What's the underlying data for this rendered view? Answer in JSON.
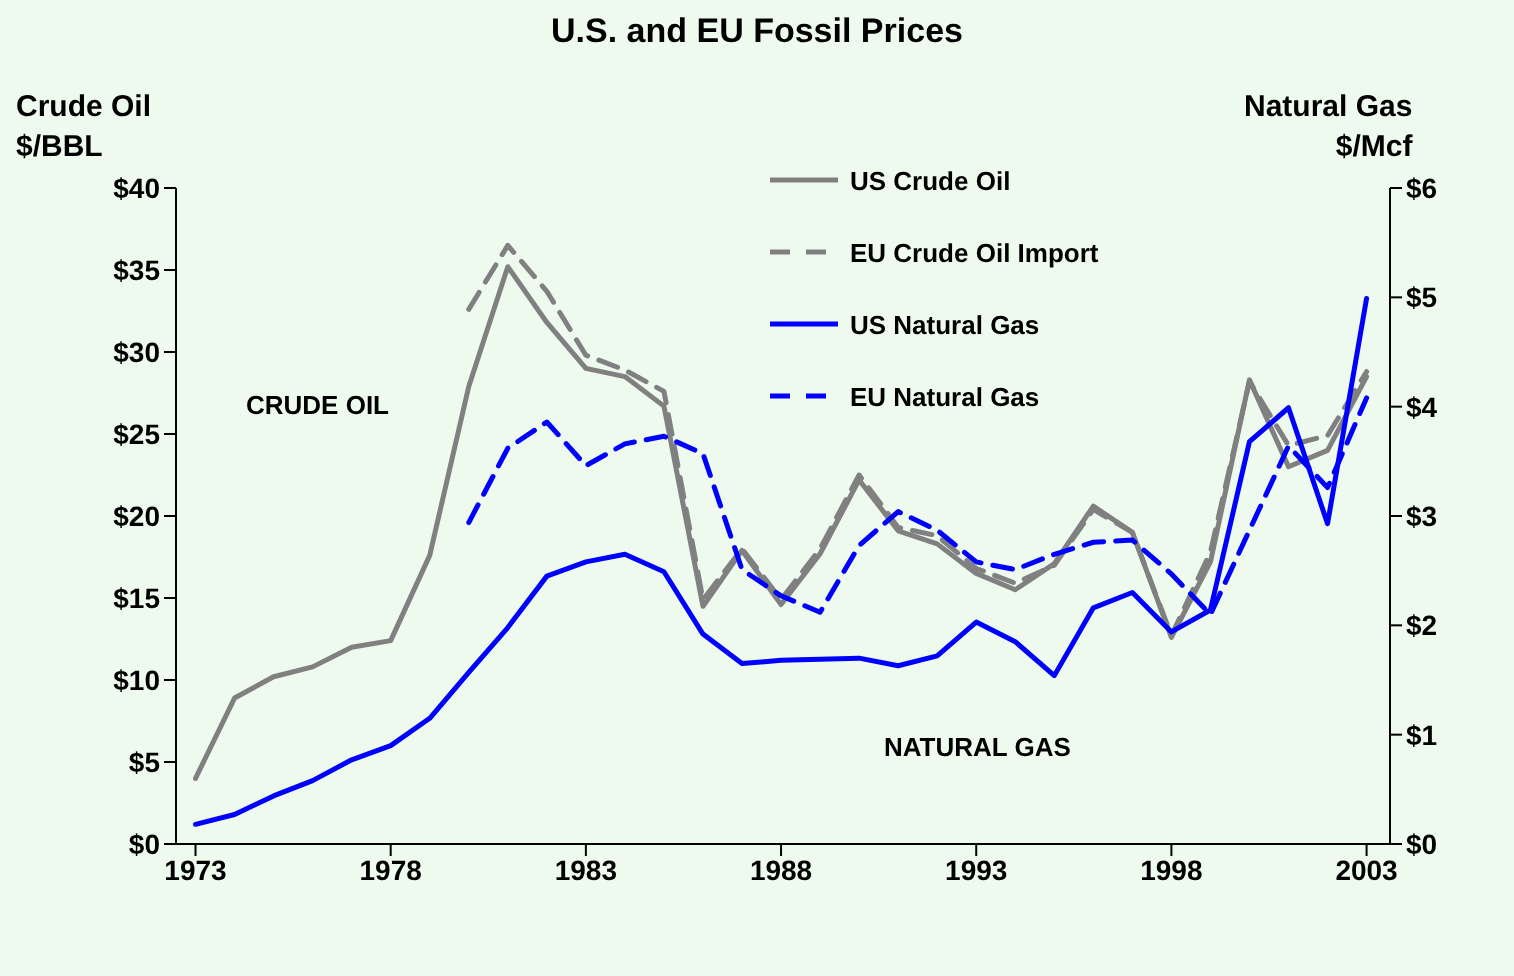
{
  "chart_data": {
    "type": "line",
    "title": "U.S. and EU Fossil Prices",
    "ylabel": "Crude Oil $/BBL",
    "y2label": "Natural Gas $/Mcf",
    "annotations": [
      "CRUDE OIL",
      "NATURAL GAS"
    ],
    "x": [
      1973,
      1974,
      1975,
      1976,
      1977,
      1978,
      1979,
      1980,
      1981,
      1982,
      1983,
      1984,
      1985,
      1986,
      1987,
      1988,
      1989,
      1990,
      1991,
      1992,
      1993,
      1994,
      1995,
      1996,
      1997,
      1998,
      1999,
      2000,
      2001,
      2002,
      2003
    ],
    "series": [
      {
        "name": "US Crude Oil",
        "color": "#808080",
        "line_style": "solid",
        "values": [
          4.0,
          8.9,
          10.2,
          10.8,
          12.0,
          12.4,
          17.6,
          27.9,
          35.2,
          31.8,
          29.0,
          28.5,
          26.7,
          14.5,
          17.9,
          14.6,
          17.7,
          22.2,
          19.1,
          18.3,
          16.5,
          15.5,
          17.1,
          20.6,
          19.0,
          12.6,
          17.2,
          28.3,
          23.0,
          24.0,
          28.5
        ]
      },
      {
        "name": "EU Crude Oil Import",
        "color": "#808080",
        "line_style": "dashed",
        "values": [
          null,
          null,
          null,
          null,
          null,
          null,
          null,
          32.6,
          36.5,
          33.7,
          29.8,
          28.9,
          27.6,
          14.9,
          18.0,
          14.9,
          18.0,
          22.5,
          19.3,
          18.8,
          16.8,
          15.9,
          17.0,
          20.4,
          19.0,
          12.7,
          17.8,
          28.2,
          24.3,
          24.9,
          28.8
        ]
      },
      {
        "name": "US Natural Gas",
        "color": "#0000ff",
        "line_style": "solid",
        "axis": "y2",
        "values": [
          0.18,
          0.27,
          0.44,
          0.58,
          0.77,
          0.9,
          1.15,
          1.57,
          1.98,
          2.45,
          2.58,
          2.65,
          2.49,
          1.92,
          1.65,
          1.68,
          1.69,
          1.7,
          1.63,
          1.72,
          2.03,
          1.85,
          1.54,
          2.16,
          2.3,
          1.94,
          2.14,
          3.68,
          3.99,
          2.93,
          4.99
        ]
      },
      {
        "name": "EU Natural Gas",
        "color": "#0000ff",
        "line_style": "dashed",
        "axis": "y2",
        "values": [
          null,
          null,
          null,
          null,
          null,
          null,
          null,
          2.94,
          3.62,
          3.86,
          3.46,
          3.66,
          3.73,
          3.57,
          2.51,
          2.27,
          2.12,
          2.73,
          3.04,
          2.87,
          2.58,
          2.51,
          2.65,
          2.76,
          2.78,
          2.47,
          2.1,
          2.87,
          3.64,
          3.26,
          4.08
        ]
      }
    ],
    "xlim": [
      1972.5,
      2003.6
    ],
    "xticks": [
      1973,
      1978,
      1983,
      1988,
      1993,
      1998,
      2003
    ],
    "ylim": [
      0,
      40
    ],
    "yticks": [
      {
        "value": 0,
        "label": "$0"
      },
      {
        "value": 5,
        "label": "$5"
      },
      {
        "value": 10,
        "label": "$10"
      },
      {
        "value": 15,
        "label": "$15"
      },
      {
        "value": 20,
        "label": "$20"
      },
      {
        "value": 25,
        "label": "$25"
      },
      {
        "value": 30,
        "label": "$30"
      },
      {
        "value": 35,
        "label": "$35"
      },
      {
        "value": 40,
        "label": "$40"
      }
    ],
    "y2lim": [
      0,
      6
    ],
    "y2ticks": [
      {
        "value": 0,
        "label": "$0"
      },
      {
        "value": 1,
        "label": "$1"
      },
      {
        "value": 2,
        "label": "$2"
      },
      {
        "value": 3,
        "label": "$3"
      },
      {
        "value": 4,
        "label": "$4"
      },
      {
        "value": 5,
        "label": "$5"
      },
      {
        "value": 6,
        "label": "$6"
      }
    ],
    "legend": "top",
    "grid": false,
    "marker": "none"
  }
}
